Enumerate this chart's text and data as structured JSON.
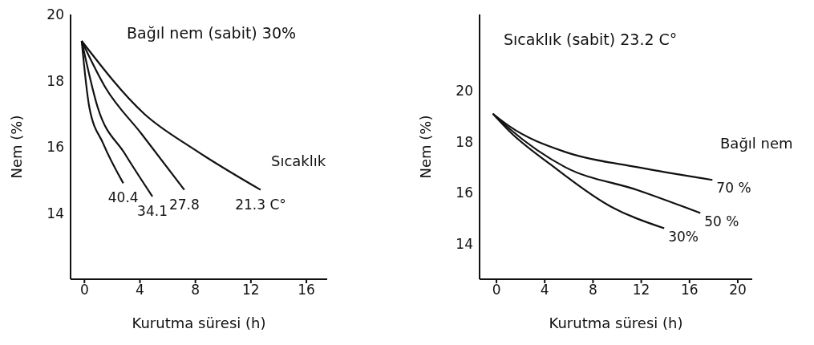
{
  "chart_data": [
    {
      "type": "line",
      "title": "Bağıl nem (sabit) 30%",
      "xlabel": "Kurutma süresi (h)",
      "ylabel": "Nem (%)",
      "annotations": [
        "Sıcaklık"
      ],
      "xlim": [
        -1,
        17.5
      ],
      "ylim": [
        12,
        20
      ],
      "xticks": [
        0,
        4,
        8,
        12,
        16
      ],
      "yticks": [
        14,
        16,
        18,
        20
      ],
      "grid": false,
      "legend": false,
      "marker": "none",
      "line_style": "solid",
      "series": [
        {
          "name": "40.4",
          "color": "#111111",
          "x": [
            -0.2,
            0.35,
            1.35,
            2.8
          ],
          "values": [
            19.2,
            17.2,
            16.1,
            14.9
          ]
        },
        {
          "name": "34.1",
          "color": "#111111",
          "x": [
            -0.2,
            0.95,
            2.9,
            4.9
          ],
          "values": [
            19.2,
            17.2,
            15.8,
            14.5
          ]
        },
        {
          "name": "27.8",
          "color": "#111111",
          "x": [
            -0.2,
            1.5,
            4.1,
            7.2
          ],
          "values": [
            19.2,
            17.8,
            16.4,
            14.7
          ]
        },
        {
          "name": "21.3 C°",
          "color": "#111111",
          "x": [
            -0.2,
            4.3,
            8.0,
            12.7
          ],
          "values": [
            19.2,
            17.0,
            15.9,
            14.7
          ]
        }
      ]
    },
    {
      "type": "line",
      "title": "Sıcaklık (sabit) 23.2 C°",
      "xlabel": "Kurutma süresi (h)",
      "ylabel": "Nem (%)",
      "annotations": [
        "Bağıl nem"
      ],
      "xlim": [
        -1.4,
        21.2
      ],
      "ylim": [
        12.6,
        23
      ],
      "xticks": [
        0,
        4,
        8,
        12,
        16,
        20
      ],
      "yticks": [
        14,
        16,
        18,
        20
      ],
      "grid": false,
      "legend": false,
      "marker": "none",
      "line_style": "solid",
      "series": [
        {
          "name": "70 %",
          "color": "#111111",
          "x": [
            -0.3,
            1.1,
            5.7,
            11.7,
            17.9
          ],
          "values": [
            19.1,
            18.6,
            17.6,
            17.0,
            16.5
          ]
        },
        {
          "name": "50 %",
          "color": "#111111",
          "x": [
            -0.3,
            1.1,
            5.7,
            11.7,
            16.9
          ],
          "values": [
            19.1,
            18.5,
            17.0,
            16.1,
            15.2
          ]
        },
        {
          "name": "30%",
          "color": "#111111",
          "x": [
            -0.3,
            1.1,
            4.5,
            9.3,
            13.9
          ],
          "values": [
            19.1,
            18.4,
            17.1,
            15.5,
            14.6
          ]
        }
      ]
    }
  ]
}
